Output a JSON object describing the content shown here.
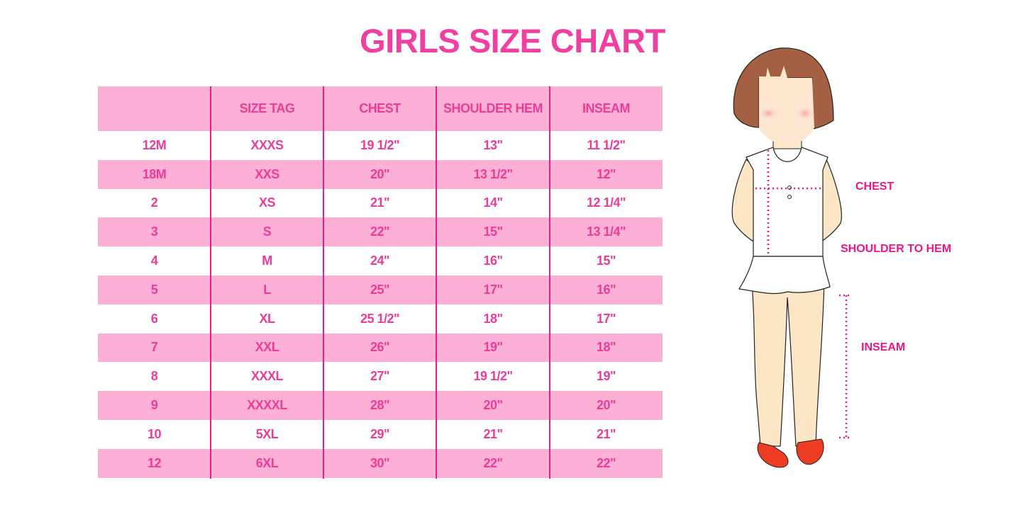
{
  "title": "GIRLS SIZE CHART",
  "table": {
    "headers": [
      "",
      "SIZE TAG",
      "CHEST",
      "SHOULDER HEM",
      "INSEAM"
    ],
    "rows": [
      [
        "12M",
        "XXXS",
        "19 1/2\"",
        "13\"",
        "11 1/2\""
      ],
      [
        "18M",
        "XXS",
        "20\"",
        "13 1/2\"",
        "12\""
      ],
      [
        "2",
        "XS",
        "21\"",
        "14\"",
        "12 1/4\""
      ],
      [
        "3",
        "S",
        "22\"",
        "15\"",
        "13 1/4\""
      ],
      [
        "4",
        "M",
        "24\"",
        "16\"",
        "15\""
      ],
      [
        "5",
        "L",
        "25\"",
        "17\"",
        "16\""
      ],
      [
        "6",
        "XL",
        "25 1/2\"",
        "18\"",
        "17\""
      ],
      [
        "7",
        "XXL",
        "26\"",
        "19\"",
        "18\""
      ],
      [
        "8",
        "XXXL",
        "27\"",
        "19 1/2\"",
        "19\""
      ],
      [
        "9",
        "XXXXL",
        "28\"",
        "20\"",
        "20\""
      ],
      [
        "10",
        "5XL",
        "29\"",
        "21\"",
        "21\""
      ],
      [
        "12",
        "6XL",
        "30\"",
        "22\"",
        "22\""
      ]
    ]
  },
  "figure": {
    "labels": {
      "chest": "CHEST",
      "shoulder": "SHOULDER TO HEM",
      "inseam": "INSEAM"
    }
  },
  "colors": {
    "accent": "#ea3c99",
    "stripe": "#fdb0d6",
    "divider": "#e0218a"
  }
}
